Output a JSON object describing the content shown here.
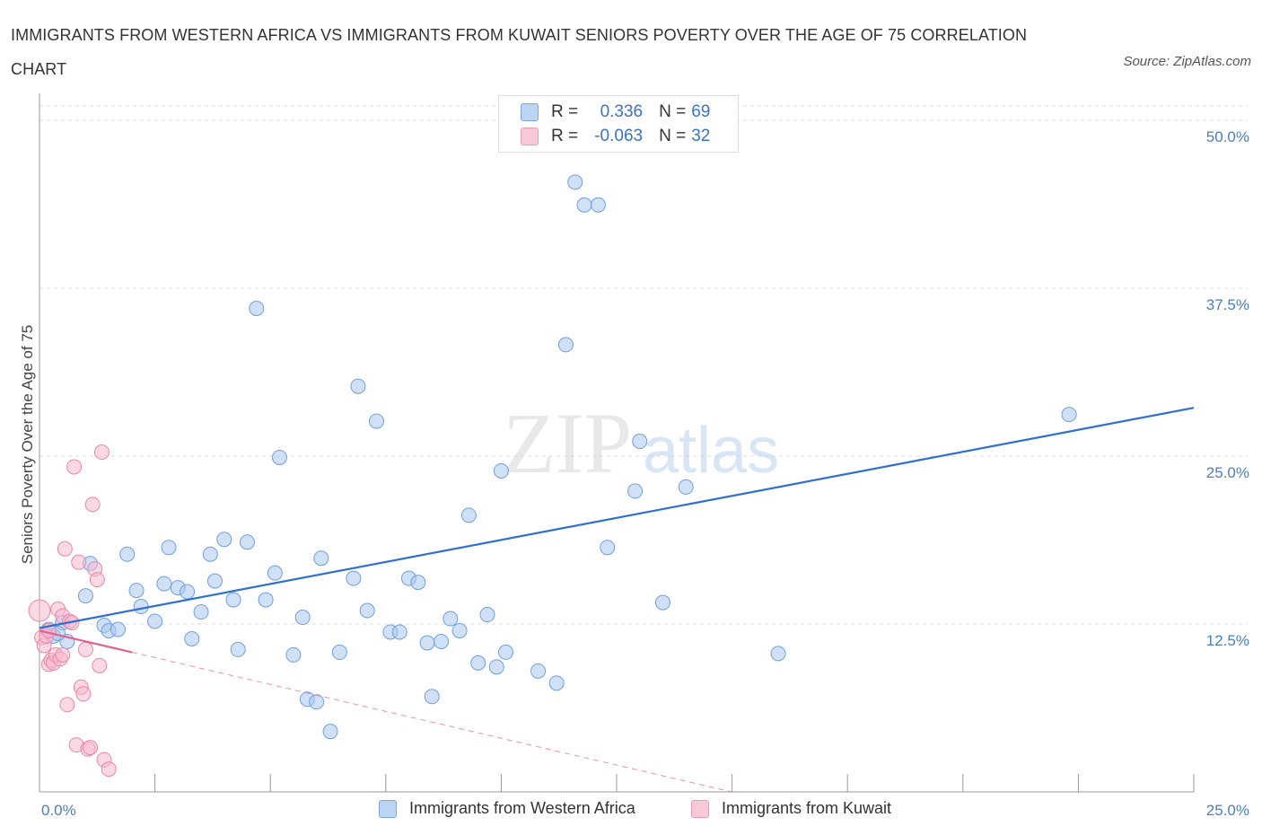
{
  "title": "IMMIGRANTS FROM WESTERN AFRICA VS IMMIGRANTS FROM KUWAIT SENIORS POVERTY OVER THE AGE OF 75 CORRELATION CHART",
  "source": "Source: ZipAtlas.com",
  "watermark": {
    "zip": "ZIP",
    "atlas": "atlas"
  },
  "colors": {
    "blue_fill": "#a9c8f0",
    "blue_stroke": "#6f9fdc",
    "blue_line": "#2f6fcf",
    "pink_fill": "#f6b9cd",
    "pink_stroke": "#ec86a8",
    "pink_line": "#e0608e",
    "grid": "#dddddd",
    "tick_text": "#4a7fc1"
  },
  "legend": {
    "rows": [
      {
        "r_label": "R =",
        "r_value": "0.336",
        "n_label": "N =",
        "n_value": "69"
      },
      {
        "r_label": "R =",
        "r_value": "-0.063",
        "n_label": "N =",
        "n_value": "32"
      }
    ]
  },
  "bottom_legend": [
    "Immigrants from Western Africa",
    "Immigrants from Kuwait"
  ],
  "chart_data": {
    "type": "scatter",
    "title": "IMMIGRANTS FROM WESTERN AFRICA VS IMMIGRANTS FROM KUWAIT SENIORS POVERTY OVER THE AGE OF 75 CORRELATION CHART",
    "xlabel": "",
    "ylabel": "Seniors Poverty Over the Age of 75",
    "xlim": [
      0,
      25
    ],
    "ylim": [
      0,
      50
    ],
    "x_tick_labels": [
      "0.0%",
      "25.0%"
    ],
    "y_ticks": [
      12.5,
      25.0,
      37.5,
      50.0
    ],
    "y_tick_labels": [
      "12.5%",
      "25.0%",
      "37.5%",
      "50.0%"
    ],
    "grid": true,
    "series": [
      {
        "name": "Immigrants from Western Africa",
        "R": 0.336,
        "N": 69,
        "trend": {
          "x": [
            0,
            25
          ],
          "y": [
            12.2,
            28.6
          ]
        },
        "points": [
          [
            0.2,
            12.1
          ],
          [
            0.3,
            11.6
          ],
          [
            0.5,
            12.6
          ],
          [
            0.6,
            11.2
          ],
          [
            1.0,
            14.6
          ],
          [
            1.1,
            17.0
          ],
          [
            1.4,
            12.4
          ],
          [
            1.5,
            12.0
          ],
          [
            1.7,
            12.1
          ],
          [
            1.9,
            17.7
          ],
          [
            2.1,
            15.0
          ],
          [
            2.2,
            13.8
          ],
          [
            2.5,
            12.7
          ],
          [
            2.7,
            15.5
          ],
          [
            2.8,
            18.2
          ],
          [
            3.0,
            15.2
          ],
          [
            3.2,
            14.9
          ],
          [
            3.3,
            11.4
          ],
          [
            3.5,
            13.4
          ],
          [
            3.7,
            17.7
          ],
          [
            3.8,
            15.7
          ],
          [
            4.0,
            18.8
          ],
          [
            4.2,
            14.3
          ],
          [
            4.3,
            10.6
          ],
          [
            4.5,
            18.6
          ],
          [
            4.7,
            36.0
          ],
          [
            4.9,
            14.3
          ],
          [
            5.1,
            16.3
          ],
          [
            5.2,
            24.9
          ],
          [
            5.5,
            10.2
          ],
          [
            5.7,
            13.0
          ],
          [
            5.8,
            6.9
          ],
          [
            6.0,
            6.7
          ],
          [
            6.1,
            17.4
          ],
          [
            6.3,
            4.5
          ],
          [
            6.5,
            10.4
          ],
          [
            6.8,
            15.9
          ],
          [
            6.9,
            30.2
          ],
          [
            7.1,
            13.5
          ],
          [
            7.3,
            27.6
          ],
          [
            7.6,
            11.9
          ],
          [
            7.8,
            11.9
          ],
          [
            8.0,
            15.9
          ],
          [
            8.2,
            15.6
          ],
          [
            8.4,
            11.1
          ],
          [
            8.5,
            7.1
          ],
          [
            8.7,
            11.2
          ],
          [
            8.9,
            12.9
          ],
          [
            9.1,
            12.0
          ],
          [
            9.3,
            20.6
          ],
          [
            9.5,
            9.6
          ],
          [
            9.7,
            13.2
          ],
          [
            9.9,
            9.3
          ],
          [
            10.0,
            23.9
          ],
          [
            10.1,
            10.4
          ],
          [
            10.8,
            9.0
          ],
          [
            11.2,
            8.1
          ],
          [
            11.4,
            33.3
          ],
          [
            11.6,
            45.4
          ],
          [
            11.8,
            43.7
          ],
          [
            12.1,
            43.7
          ],
          [
            12.3,
            18.2
          ],
          [
            12.9,
            22.4
          ],
          [
            13.0,
            26.1
          ],
          [
            13.5,
            14.1
          ],
          [
            14.0,
            22.7
          ],
          [
            16.0,
            10.3
          ],
          [
            22.3,
            28.1
          ],
          [
            0.4,
            11.8
          ]
        ]
      },
      {
        "name": "Immigrants from Kuwait",
        "R": -0.063,
        "N": 32,
        "trend": {
          "x": [
            0,
            2.0
          ],
          "y": [
            12.0,
            10.4
          ]
        },
        "trend_dashed": {
          "x": [
            2.0,
            15.0
          ],
          "y": [
            10.4,
            0.0
          ]
        },
        "points": [
          [
            0.0,
            13.5
          ],
          [
            0.05,
            11.5
          ],
          [
            0.1,
            10.9
          ],
          [
            0.15,
            11.6
          ],
          [
            0.2,
            12.0
          ],
          [
            0.2,
            9.5
          ],
          [
            0.25,
            9.8
          ],
          [
            0.3,
            9.6
          ],
          [
            0.35,
            10.2
          ],
          [
            0.4,
            13.6
          ],
          [
            0.45,
            9.9
          ],
          [
            0.5,
            10.2
          ],
          [
            0.5,
            13.1
          ],
          [
            0.55,
            18.1
          ],
          [
            0.6,
            6.5
          ],
          [
            0.65,
            12.7
          ],
          [
            0.7,
            12.6
          ],
          [
            0.75,
            24.2
          ],
          [
            0.8,
            3.5
          ],
          [
            0.85,
            17.1
          ],
          [
            0.9,
            7.8
          ],
          [
            0.95,
            7.3
          ],
          [
            1.0,
            10.6
          ],
          [
            1.05,
            3.2
          ],
          [
            1.1,
            3.3
          ],
          [
            1.15,
            21.4
          ],
          [
            1.2,
            16.6
          ],
          [
            1.25,
            15.8
          ],
          [
            1.3,
            9.4
          ],
          [
            1.35,
            25.3
          ],
          [
            1.4,
            2.4
          ],
          [
            1.5,
            1.7
          ]
        ]
      }
    ]
  }
}
